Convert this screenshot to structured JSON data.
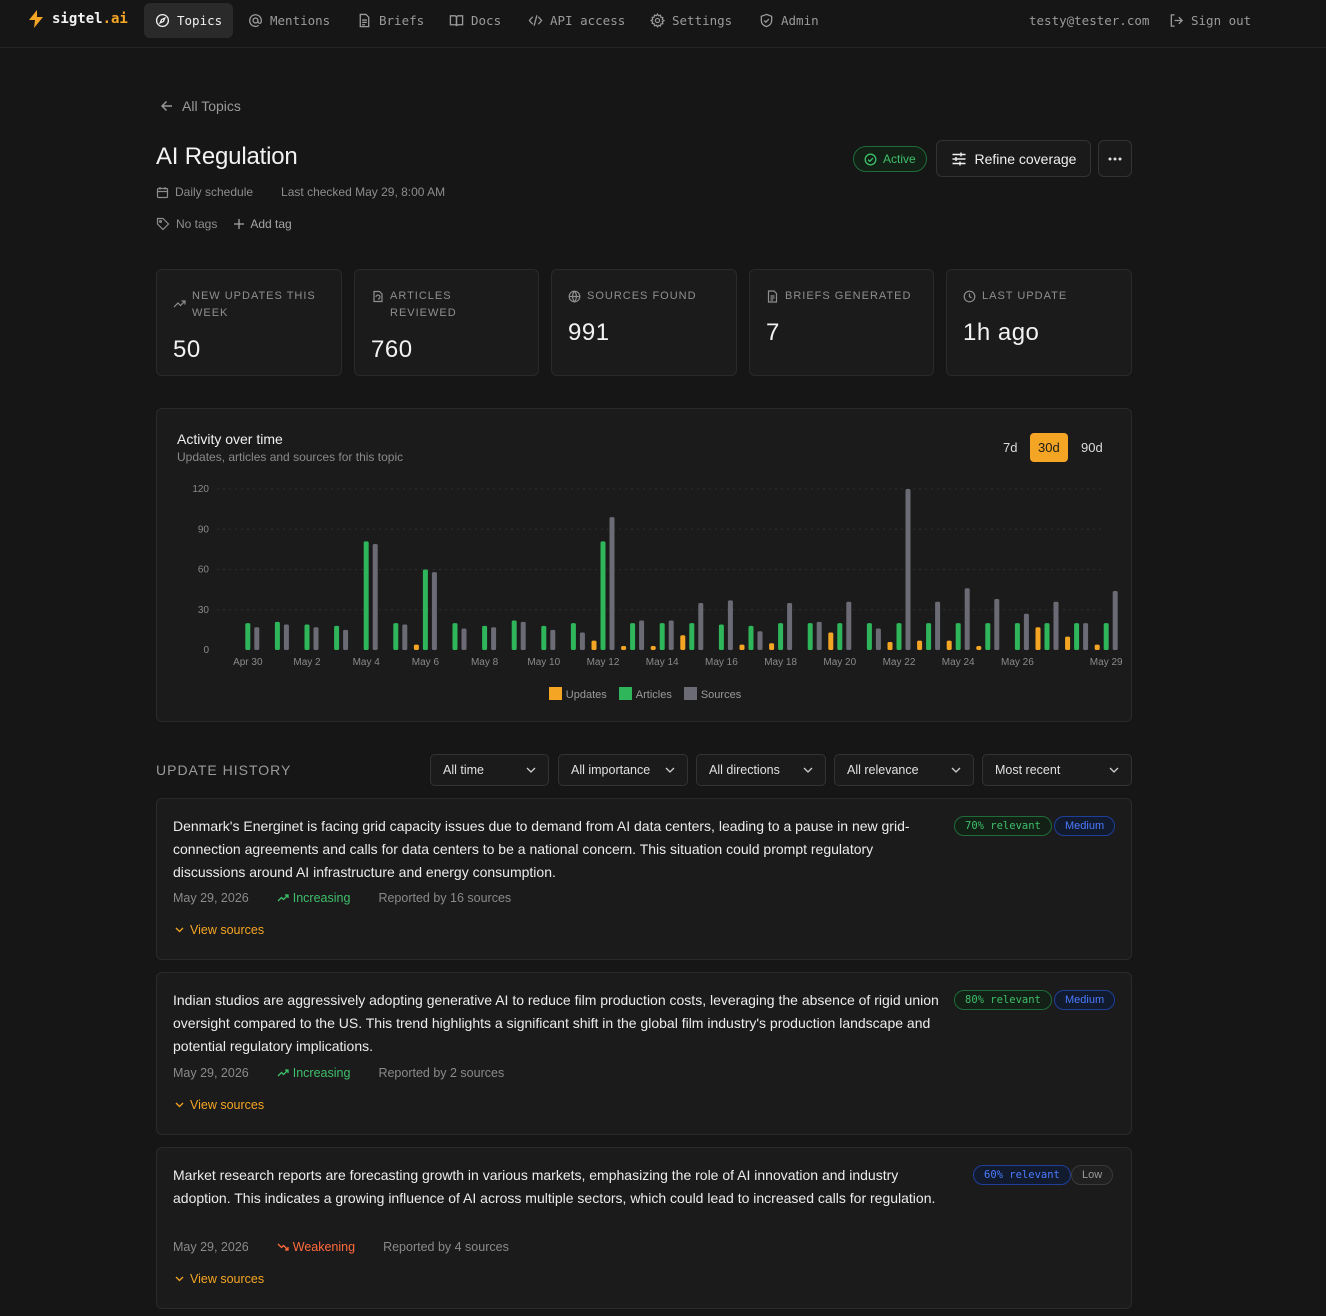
{
  "brand": {
    "name": "sigtel",
    "suffix": ".ai"
  },
  "nav": {
    "items": [
      {
        "label": "Topics",
        "icon": "compass-icon"
      },
      {
        "label": "Mentions",
        "icon": "at-icon"
      },
      {
        "label": "Briefs",
        "icon": "document-icon"
      },
      {
        "label": "Docs",
        "icon": "book-icon"
      },
      {
        "label": "API access",
        "icon": "code-icon"
      },
      {
        "label": "Settings",
        "icon": "gear-icon"
      },
      {
        "label": "Admin",
        "icon": "shield-icon"
      }
    ],
    "user_email": "testy@tester.com",
    "sign_out": "Sign out"
  },
  "topic": {
    "back_label": "All Topics",
    "title": "AI Regulation",
    "schedule": "Daily schedule",
    "last_checked": "Last checked May 29, 8:00 AM",
    "tags_label": "No tags",
    "add_tag": "Add tag",
    "status": "Active",
    "refine_label": "Refine coverage"
  },
  "stats": [
    {
      "label": "New updates this week",
      "value": "50",
      "icon": "trend-icon"
    },
    {
      "label": "Articles reviewed",
      "value": "760",
      "icon": "refresh-doc-icon"
    },
    {
      "label": "Sources found",
      "value": "991",
      "icon": "globe-icon"
    },
    {
      "label": "Briefs generated",
      "value": "7",
      "icon": "document-icon"
    },
    {
      "label": "Last update",
      "value": "1h ago",
      "icon": "clock-icon"
    }
  ],
  "chart": {
    "title": "Activity over time",
    "subtitle": "Updates, articles and sources for this topic",
    "ranges": [
      "7d",
      "30d",
      "90d"
    ],
    "active_range": "30d"
  },
  "chart_data": {
    "type": "bar",
    "categories": [
      "Apr 30",
      "May 1",
      "May 2",
      "May 3",
      "May 4",
      "May 5",
      "May 6",
      "May 7",
      "May 8",
      "May 9",
      "May 10",
      "May 11",
      "May 12",
      "May 13",
      "May 14",
      "May 15",
      "May 16",
      "May 17",
      "May 18",
      "May 19",
      "May 20",
      "May 21",
      "May 22",
      "May 23",
      "May 24",
      "May 25",
      "May 26",
      "May 27",
      "May 28",
      "May 29"
    ],
    "tick_labels": [
      "Apr 30",
      "May 2",
      "May 4",
      "May 6",
      "May 8",
      "May 10",
      "May 12",
      "May 14",
      "May 16",
      "May 18",
      "May 20",
      "May 22",
      "May 24",
      "May 26",
      "May 29"
    ],
    "series": [
      {
        "name": "Updates",
        "color": "#f5a524",
        "values": [
          0,
          0,
          0,
          0,
          0,
          0,
          4,
          0,
          0,
          0,
          0,
          0,
          7,
          3,
          3,
          11,
          0,
          4,
          5,
          0,
          13,
          0,
          6,
          7,
          7,
          3,
          0,
          17,
          10,
          4
        ]
      },
      {
        "name": "Articles",
        "color": "#2fb55a",
        "values": [
          20,
          21,
          19,
          18,
          81,
          20,
          60,
          20,
          18,
          22,
          18,
          20,
          81,
          20,
          20,
          20,
          19,
          18,
          20,
          20,
          20,
          20,
          20,
          20,
          20,
          20,
          20,
          20,
          20,
          20
        ]
      },
      {
        "name": "Sources",
        "color": "#6b6b75",
        "values": [
          17,
          19,
          17,
          15,
          79,
          19,
          58,
          16,
          17,
          21,
          15,
          13,
          99,
          22,
          22,
          35,
          37,
          14,
          35,
          21,
          36,
          16,
          120,
          36,
          46,
          38,
          27,
          36,
          20,
          44
        ]
      }
    ],
    "ylim": [
      0,
      120
    ],
    "yticks": [
      0,
      30,
      60,
      90,
      120
    ],
    "grid": true,
    "legend": "bottom"
  },
  "history": {
    "title": "UPDATE HISTORY",
    "filters": [
      "All time",
      "All importance",
      "All directions",
      "All relevance",
      "Most recent"
    ],
    "items": [
      {
        "text": "Denmark's Energinet is facing grid capacity issues due to demand from AI data centers, leading to a pause in new grid-connection agreements and calls for data centers to be a national concern. This situation could prompt regulatory discussions around AI infrastructure and energy consumption.",
        "date": "May 29, 2026",
        "direction": "Increasing",
        "reported": "Reported by 16 sources",
        "relevance": "70% relevant",
        "importance": "Medium",
        "view": "View sources"
      },
      {
        "text": "Indian studios are aggressively adopting generative AI to reduce film production costs, leveraging the absence of rigid union oversight compared to the US. This trend highlights a significant shift in the global film industry's production landscape and potential regulatory implications.",
        "date": "May 29, 2026",
        "direction": "Increasing",
        "reported": "Reported by 2 sources",
        "relevance": "80% relevant",
        "importance": "Medium",
        "view": "View sources"
      },
      {
        "text": "Market research reports are forecasting growth in various markets, emphasizing the role of AI innovation and industry adoption. This indicates a growing influence of AI across multiple sectors, which could lead to increased calls for regulation.",
        "date": "May 29, 2026",
        "direction": "Weakening",
        "reported": "Reported by 4 sources",
        "relevance": "60% relevant",
        "importance": "Low",
        "view": "View sources"
      }
    ]
  }
}
